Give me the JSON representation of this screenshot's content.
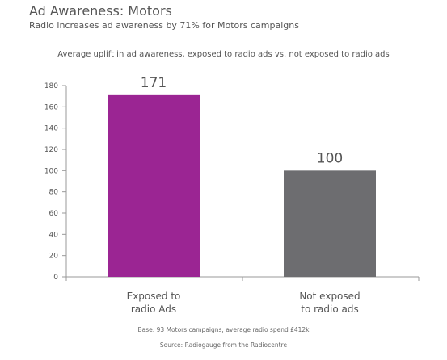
{
  "header": {
    "title": "Ad Awareness: Motors",
    "subtitle": "Radio increases ad awareness by 71% for Motors campaigns"
  },
  "footer": {
    "base": "Base: 93 Motors campaigns; average radio spend £412k",
    "source": "Source: Radiogauge from the Radiocentre"
  },
  "colors": {
    "bar_exposed": "#9b2593",
    "bar_not_exposed": "#6d6d70",
    "axis": "#999999"
  },
  "chart_data": {
    "type": "bar",
    "title": "Average uplift in ad awareness, exposed to radio ads vs. not exposed to radio ads",
    "categories": [
      [
        "Exposed to",
        "radio Ads"
      ],
      [
        "Not exposed",
        "to radio ads"
      ]
    ],
    "values": [
      171,
      100
    ],
    "data_labels": [
      "171",
      "100"
    ],
    "ylim": [
      0,
      180
    ],
    "yticks": [
      0,
      20,
      40,
      60,
      80,
      100,
      120,
      140,
      160,
      180
    ],
    "grid": false,
    "legend": "none",
    "xlabel": "",
    "ylabel": ""
  }
}
